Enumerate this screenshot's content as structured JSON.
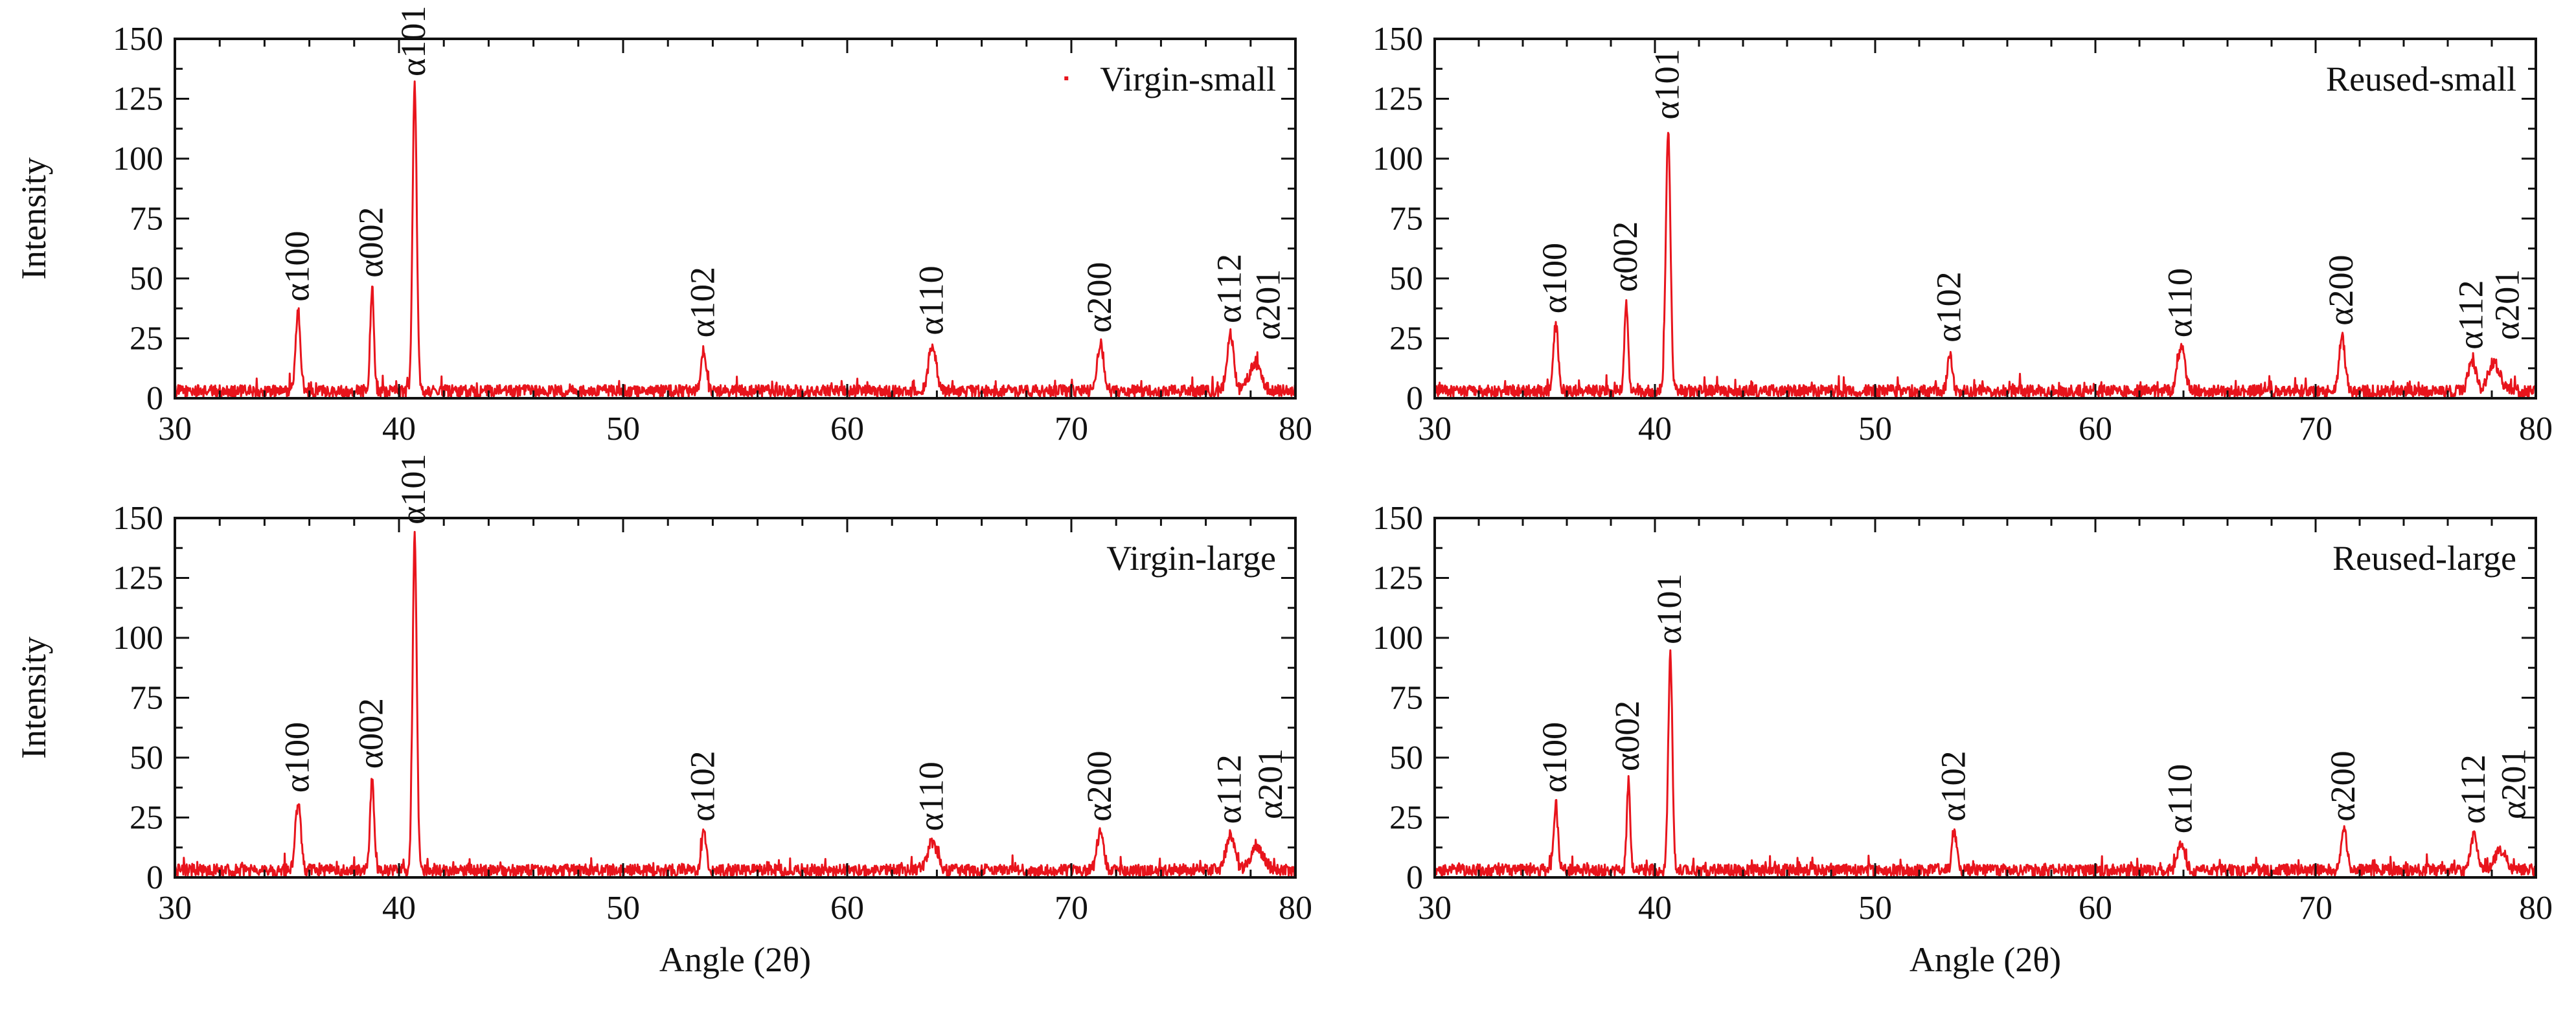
{
  "colors": {
    "series": "#e8141c",
    "axis": "#111111",
    "background": "#ffffff"
  },
  "chart_data": [
    {
      "type": "line",
      "title": "",
      "legend": "Virgin-small",
      "legend_position": "top-right",
      "legend_marker": true,
      "xlabel": "",
      "ylabel": "Intensity",
      "xlim": [
        30,
        80
      ],
      "ylim": [
        0,
        150
      ],
      "xticks": [
        30,
        40,
        50,
        60,
        70,
        80
      ],
      "yticks": [
        0,
        25,
        50,
        75,
        100,
        125,
        150
      ],
      "baseline": 3,
      "peaks": [
        {
          "x": 35.5,
          "y": 36,
          "width": 0.25,
          "label": "α100"
        },
        {
          "x": 38.8,
          "y": 46,
          "width": 0.2,
          "label": "α002"
        },
        {
          "x": 40.7,
          "y": 130,
          "width": 0.22,
          "label": "α101"
        },
        {
          "x": 53.6,
          "y": 21,
          "width": 0.25,
          "label": "α102"
        },
        {
          "x": 63.8,
          "y": 22,
          "width": 0.4,
          "label": "α110"
        },
        {
          "x": 71.3,
          "y": 23,
          "width": 0.35,
          "label": "α200"
        },
        {
          "x": 77.1,
          "y": 27,
          "width": 0.35,
          "label": "α112"
        },
        {
          "x": 78.2,
          "y": 15,
          "width": 0.6,
          "label": "α201"
        }
      ]
    },
    {
      "type": "line",
      "title": "",
      "legend": "Reused-small",
      "legend_position": "top-right",
      "legend_marker": false,
      "xlabel": "",
      "ylabel": "",
      "xlim": [
        30,
        80
      ],
      "ylim": [
        0,
        150
      ],
      "xticks": [
        30,
        40,
        50,
        60,
        70,
        80
      ],
      "yticks": [
        0,
        25,
        50,
        75,
        100,
        125,
        150
      ],
      "baseline": 3,
      "peaks": [
        {
          "x": 35.5,
          "y": 31,
          "width": 0.25,
          "label": "α100"
        },
        {
          "x": 38.7,
          "y": 40,
          "width": 0.2,
          "label": "α002"
        },
        {
          "x": 40.6,
          "y": 112,
          "width": 0.25,
          "label": "α101"
        },
        {
          "x": 53.4,
          "y": 19,
          "width": 0.25,
          "label": "α102"
        },
        {
          "x": 63.9,
          "y": 21,
          "width": 0.4,
          "label": "α110"
        },
        {
          "x": 71.2,
          "y": 26,
          "width": 0.3,
          "label": "α200"
        },
        {
          "x": 77.1,
          "y": 16,
          "width": 0.4,
          "label": "α112"
        },
        {
          "x": 78.1,
          "y": 15,
          "width": 0.6,
          "label": "α201"
        }
      ]
    },
    {
      "type": "line",
      "title": "",
      "legend": "Virgin-large",
      "legend_position": "top-right",
      "legend_marker": false,
      "xlabel": "Angle (2θ)",
      "ylabel": "Intensity",
      "xlim": [
        30,
        80
      ],
      "ylim": [
        0,
        150
      ],
      "xticks": [
        30,
        40,
        50,
        60,
        70,
        80
      ],
      "yticks": [
        0,
        25,
        50,
        75,
        100,
        125,
        150
      ],
      "baseline": 3,
      "peaks": [
        {
          "x": 35.5,
          "y": 31,
          "width": 0.28,
          "label": "α100"
        },
        {
          "x": 38.8,
          "y": 41,
          "width": 0.2,
          "label": "α002"
        },
        {
          "x": 40.7,
          "y": 143,
          "width": 0.22,
          "label": "α101"
        },
        {
          "x": 53.6,
          "y": 19,
          "width": 0.25,
          "label": "α102"
        },
        {
          "x": 63.8,
          "y": 15,
          "width": 0.5,
          "label": "α110"
        },
        {
          "x": 71.3,
          "y": 19,
          "width": 0.35,
          "label": "α200"
        },
        {
          "x": 77.1,
          "y": 18,
          "width": 0.45,
          "label": "α112"
        },
        {
          "x": 78.3,
          "y": 12,
          "width": 0.7,
          "label": "α201"
        }
      ]
    },
    {
      "type": "line",
      "title": "",
      "legend": "Reused-large",
      "legend_position": "top-right",
      "legend_marker": false,
      "xlabel": "Angle (2θ)",
      "ylabel": "",
      "xlim": [
        30,
        80
      ],
      "ylim": [
        0,
        150
      ],
      "xticks": [
        30,
        40,
        50,
        60,
        70,
        80
      ],
      "yticks": [
        0,
        25,
        50,
        75,
        100,
        125,
        150
      ],
      "baseline": 3,
      "peaks": [
        {
          "x": 35.5,
          "y": 31,
          "width": 0.22,
          "label": "α100"
        },
        {
          "x": 38.8,
          "y": 40,
          "width": 0.18,
          "label": "α002"
        },
        {
          "x": 40.7,
          "y": 93,
          "width": 0.22,
          "label": "α101"
        },
        {
          "x": 53.6,
          "y": 19,
          "width": 0.25,
          "label": "α102"
        },
        {
          "x": 63.9,
          "y": 14,
          "width": 0.4,
          "label": "α110"
        },
        {
          "x": 71.3,
          "y": 19,
          "width": 0.3,
          "label": "α200"
        },
        {
          "x": 77.2,
          "y": 18,
          "width": 0.35,
          "label": "α112"
        },
        {
          "x": 78.4,
          "y": 11,
          "width": 0.6,
          "label": "α201"
        }
      ]
    }
  ]
}
